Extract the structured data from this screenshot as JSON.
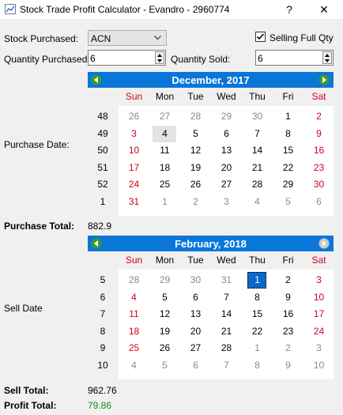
{
  "window": {
    "title": "Stock Trade Profit Calculator - Evandro - 2960774",
    "help_glyph": "?",
    "close_glyph": "✕",
    "icon": "chart-app-icon"
  },
  "form": {
    "stock_label": "Stock Purchased:",
    "stock_value": "ACN",
    "selling_full_label": "Selling Full Qty",
    "selling_full_checked": true,
    "qty_purchased_label": "Quantity Purchased:",
    "qty_purchased_value": "6",
    "qty_sold_label": "Quantity Sold:",
    "qty_sold_value": "6",
    "purchase_date_label": "Purchase Date:",
    "purchase_total_label": "Purchase Total:",
    "purchase_total_value": "882.9",
    "sell_date_label": "Sell Date",
    "sell_total_label": "Sell Total:",
    "sell_total_value": "962.76",
    "profit_total_label": "Profit Total:",
    "profit_total_value": "79.86"
  },
  "colors": {
    "header_blue": "#0a76d8",
    "weekend_red": "#d0021b",
    "profit_green": "#1a8a1a",
    "other_month_grey": "#8a8a8a"
  },
  "days_of_week": [
    "Sun",
    "Mon",
    "Tue",
    "Wed",
    "Thu",
    "Fri",
    "Sat"
  ],
  "purchase_calendar": {
    "title": "December,  2017",
    "week_numbers": [
      "48",
      "49",
      "50",
      "51",
      "52",
      "1"
    ],
    "weeks": [
      [
        {
          "d": "26",
          "o": 1
        },
        {
          "d": "27",
          "o": 1
        },
        {
          "d": "28",
          "o": 1
        },
        {
          "d": "29",
          "o": 1
        },
        {
          "d": "30",
          "o": 1
        },
        {
          "d": "1"
        },
        {
          "d": "2"
        }
      ],
      [
        {
          "d": "3"
        },
        {
          "d": "4",
          "today": 1
        },
        {
          "d": "5"
        },
        {
          "d": "6"
        },
        {
          "d": "7"
        },
        {
          "d": "8"
        },
        {
          "d": "9"
        }
      ],
      [
        {
          "d": "10"
        },
        {
          "d": "11"
        },
        {
          "d": "12"
        },
        {
          "d": "13"
        },
        {
          "d": "14"
        },
        {
          "d": "15"
        },
        {
          "d": "16"
        }
      ],
      [
        {
          "d": "17"
        },
        {
          "d": "18"
        },
        {
          "d": "19"
        },
        {
          "d": "20"
        },
        {
          "d": "21"
        },
        {
          "d": "22"
        },
        {
          "d": "23"
        }
      ],
      [
        {
          "d": "24"
        },
        {
          "d": "25"
        },
        {
          "d": "26"
        },
        {
          "d": "27"
        },
        {
          "d": "28"
        },
        {
          "d": "29"
        },
        {
          "d": "30"
        }
      ],
      [
        {
          "d": "31"
        },
        {
          "d": "1",
          "o": 1
        },
        {
          "d": "2",
          "o": 1
        },
        {
          "d": "3",
          "o": 1
        },
        {
          "d": "4",
          "o": 1
        },
        {
          "d": "5",
          "o": 1
        },
        {
          "d": "6",
          "o": 1
        }
      ]
    ]
  },
  "sell_calendar": {
    "title": "February,  2018",
    "week_numbers": [
      "5",
      "6",
      "7",
      "8",
      "9",
      "10"
    ],
    "weeks": [
      [
        {
          "d": "28",
          "o": 1
        },
        {
          "d": "29",
          "o": 1
        },
        {
          "d": "30",
          "o": 1
        },
        {
          "d": "31",
          "o": 1
        },
        {
          "d": "1",
          "sel": 1
        },
        {
          "d": "2"
        },
        {
          "d": "3"
        }
      ],
      [
        {
          "d": "4"
        },
        {
          "d": "5"
        },
        {
          "d": "6"
        },
        {
          "d": "7"
        },
        {
          "d": "8"
        },
        {
          "d": "9"
        },
        {
          "d": "10"
        }
      ],
      [
        {
          "d": "11"
        },
        {
          "d": "12"
        },
        {
          "d": "13"
        },
        {
          "d": "14"
        },
        {
          "d": "15"
        },
        {
          "d": "16"
        },
        {
          "d": "17"
        }
      ],
      [
        {
          "d": "18"
        },
        {
          "d": "19"
        },
        {
          "d": "20"
        },
        {
          "d": "21"
        },
        {
          "d": "22"
        },
        {
          "d": "23"
        },
        {
          "d": "24"
        }
      ],
      [
        {
          "d": "25"
        },
        {
          "d": "26"
        },
        {
          "d": "27"
        },
        {
          "d": "28"
        },
        {
          "d": "1",
          "o": 1
        },
        {
          "d": "2",
          "o": 1
        },
        {
          "d": "3",
          "o": 1
        }
      ],
      [
        {
          "d": "4",
          "o": 1
        },
        {
          "d": "5",
          "o": 1
        },
        {
          "d": "6",
          "o": 1
        },
        {
          "d": "7",
          "o": 1
        },
        {
          "d": "8",
          "o": 1
        },
        {
          "d": "9",
          "o": 1
        },
        {
          "d": "10",
          "o": 1
        }
      ]
    ]
  }
}
